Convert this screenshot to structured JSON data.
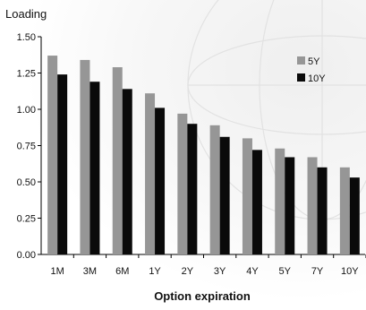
{
  "chart_data": {
    "type": "bar",
    "ylabel": "Loading",
    "xlabel": "Option expiration",
    "categories": [
      "1M",
      "3M",
      "6M",
      "1Y",
      "2Y",
      "3Y",
      "4Y",
      "5Y",
      "7Y",
      "10Y"
    ],
    "series": [
      {
        "name": "5Y",
        "color": "#969696",
        "values": [
          1.37,
          1.34,
          1.29,
          1.11,
          0.97,
          0.89,
          0.8,
          0.73,
          0.67,
          0.6
        ]
      },
      {
        "name": "10Y",
        "color": "#0a0a0a",
        "values": [
          1.24,
          1.19,
          1.14,
          1.01,
          0.9,
          0.81,
          0.72,
          0.67,
          0.6,
          0.53
        ]
      }
    ],
    "ylim": [
      0,
      1.5
    ],
    "yticks": [
      "0.00",
      "0.25",
      "0.50",
      "0.75",
      "1.00",
      "1.25",
      "1.50"
    ],
    "grid": false,
    "legend": "top-right"
  }
}
